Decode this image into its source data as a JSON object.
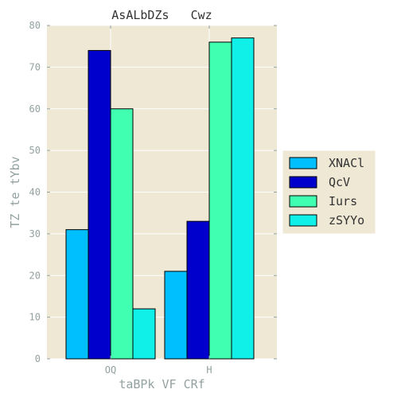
{
  "chart_data": {
    "type": "bar",
    "title": "AsALbDZs   Cwz",
    "xlabel": "taBPk VF CRf",
    "ylabel": "TZ te tYbv",
    "categories": [
      "OQ",
      "H"
    ],
    "series": [
      {
        "name": "XNACl",
        "values": [
          31,
          21
        ],
        "color": "#00BFFF"
      },
      {
        "name": "QcV",
        "values": [
          74,
          33
        ],
        "color": "#0000CD"
      },
      {
        "name": "Iurs",
        "values": [
          60,
          76
        ],
        "color": "#40FFB0"
      },
      {
        "name": "zSYYo",
        "values": [
          12,
          77
        ],
        "color": "#10F0E8"
      }
    ],
    "ylim": [
      0,
      80
    ],
    "yticks": [
      0,
      10,
      20,
      30,
      40,
      50,
      60,
      70,
      80
    ],
    "grid": true,
    "legend_position": "right",
    "colors": {
      "plot_background": "#EEE8D5",
      "grid": "#FFFFFF",
      "tick_text": "#93A1A1",
      "title_text": "#333333"
    }
  }
}
